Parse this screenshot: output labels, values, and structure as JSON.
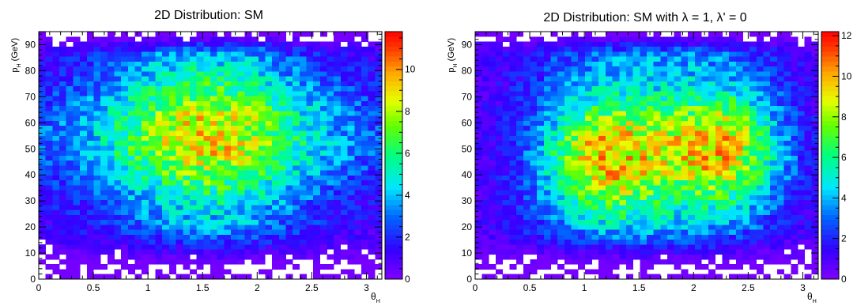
{
  "chart_data": [
    {
      "type": "heatmap",
      "title": "2D Distribution: SM",
      "xlabel": "θ_H",
      "ylabel": "p_H (GeV)",
      "xlim": [
        0,
        3.1416
      ],
      "ylim": [
        0,
        95
      ],
      "x_ticks": [
        "0",
        "0.5",
        "1",
        "1.5",
        "2",
        "2.5",
        "3"
      ],
      "y_ticks": [
        "0",
        "10",
        "20",
        "30",
        "40",
        "50",
        "60",
        "70",
        "80",
        "90"
      ],
      "z_ticks": [
        "0",
        "2",
        "4",
        "6",
        "8",
        "10"
      ],
      "zlim": [
        0,
        11.8
      ],
      "nx": 50,
      "ny": 50,
      "peak": {
        "x": 1.55,
        "y": 55,
        "value": 9.0
      },
      "profile": "single broad maximum centred near theta 1.5, p 55 GeV; count falls to ~0 at p < 8 GeV and at p > 92 GeV",
      "palette": "rainbow (violet→blue→cyan→green→yellow→orange→red)"
    },
    {
      "type": "heatmap",
      "title": "2D Distribution: SM with    λ = 1,  λ' = 0",
      "xlabel": "θ_H",
      "ylabel": "p_H (GeV)",
      "xlim": [
        0,
        3.1416
      ],
      "ylim": [
        0,
        95
      ],
      "x_ticks": [
        "0",
        "0.5",
        "1",
        "1.5",
        "2",
        "2.5",
        "3"
      ],
      "y_ticks": [
        "0",
        "10",
        "20",
        "30",
        "40",
        "50",
        "60",
        "70",
        "80",
        "90"
      ],
      "z_ticks": [
        "0",
        "2",
        "4",
        "6",
        "8",
        "10",
        "12"
      ],
      "zlim": [
        0,
        12.2
      ],
      "nx": 50,
      "ny": 50,
      "peak": {
        "x": 1.45,
        "y": 45,
        "value": 9.0
      },
      "profile": "broad maximum with two lobes near theta 1.2 and 2.2, p 40–55 GeV; count falls to ~0 at p < 8 GeV and at p > 92 GeV",
      "palette": "rainbow (violet→blue→cyan→green→yellow→orange→red)"
    }
  ]
}
